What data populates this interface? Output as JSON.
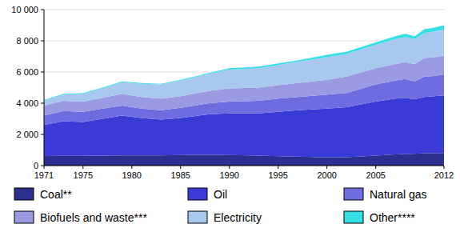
{
  "chart_data": {
    "type": "area",
    "stacked": true,
    "grid": true,
    "legend": "bottom",
    "x": [
      1971,
      1973,
      1975,
      1977,
      1979,
      1981,
      1983,
      1985,
      1988,
      1990,
      1993,
      1995,
      1997,
      2000,
      2002,
      2005,
      2007,
      2008,
      2009,
      2010,
      2011,
      2012
    ],
    "xlim": [
      1971,
      2012
    ],
    "xticks": [
      1971,
      1975,
      1980,
      1985,
      1990,
      1995,
      2000,
      2005,
      2012
    ],
    "ylim": [
      0,
      10000
    ],
    "yticks": [
      0,
      {
        "value": 2000,
        "label": "2 000"
      },
      {
        "value": 4000,
        "label": "4 000"
      },
      {
        "value": 6000,
        "label": "6 000"
      },
      {
        "value": 8000,
        "label": "8 000"
      },
      {
        "value": 10000,
        "label": "10 000"
      }
    ],
    "series": [
      {
        "name": "Coal**",
        "color": "#2a2e8c",
        "values": [
          620,
          630,
          630,
          640,
          660,
          660,
          660,
          680,
          690,
          680,
          640,
          600,
          580,
          520,
          540,
          640,
          720,
          740,
          760,
          790,
          800,
          810
        ]
      },
      {
        "name": "Oil",
        "color": "#3a3ad6",
        "values": [
          1980,
          2220,
          2170,
          2360,
          2540,
          2390,
          2290,
          2370,
          2610,
          2670,
          2710,
          2850,
          2970,
          3130,
          3210,
          3460,
          3580,
          3610,
          3490,
          3610,
          3650,
          3690
        ]
      },
      {
        "name": "Natural gas",
        "color": "#6d6de0",
        "values": [
          600,
          650,
          650,
          650,
          650,
          600,
          600,
          650,
          700,
          750,
          800,
          850,
          850,
          900,
          900,
          1100,
          1150,
          1200,
          1150,
          1300,
          1300,
          1350
        ]
      },
      {
        "name": "Biofuels and waste***",
        "color": "#9a9ae2",
        "values": [
          650,
          650,
          650,
          700,
          750,
          750,
          750,
          750,
          800,
          850,
          850,
          850,
          900,
          950,
          1050,
          1050,
          1050,
          1100,
          1100,
          1200,
          1200,
          1200
        ]
      },
      {
        "name": "Electricity",
        "color": "#a8c8ef",
        "values": [
          300,
          400,
          500,
          600,
          750,
          850,
          900,
          1000,
          1100,
          1200,
          1250,
          1300,
          1350,
          1450,
          1450,
          1500,
          1600,
          1600,
          1600,
          1600,
          1650,
          1650
        ]
      },
      {
        "name": "Other****",
        "color": "#36dfe6",
        "values": [
          50,
          50,
          50,
          50,
          50,
          50,
          50,
          50,
          50,
          100,
          100,
          100,
          100,
          150,
          150,
          150,
          200,
          200,
          200,
          250,
          250,
          300
        ]
      }
    ]
  }
}
